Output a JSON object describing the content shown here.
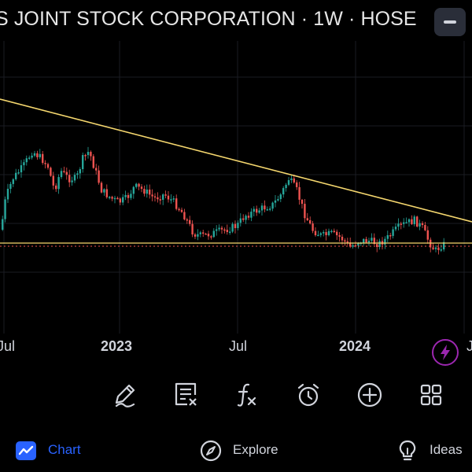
{
  "header": {
    "title": "S JOINT STOCK CORPORATION · 1W · HOSE"
  },
  "chart": {
    "time_labels": [
      "Jul",
      "2023",
      "Jul",
      "2024",
      "J"
    ]
  },
  "toolbar": {
    "icons": [
      "pen-icon",
      "object-tree-icon",
      "indicators-fx-icon",
      "alert-clock-icon",
      "add-plus-icon",
      "layout-grid-icon"
    ]
  },
  "nav": {
    "chart_label": "Chart",
    "explore_label": "Explore",
    "ideas_label": "Ideas",
    "active_color": "#2962ff"
  },
  "colors": {
    "up": "#26a69a",
    "down": "#ef5350",
    "trendline": "#f5d76e",
    "lightning": "#9c27b0"
  }
}
